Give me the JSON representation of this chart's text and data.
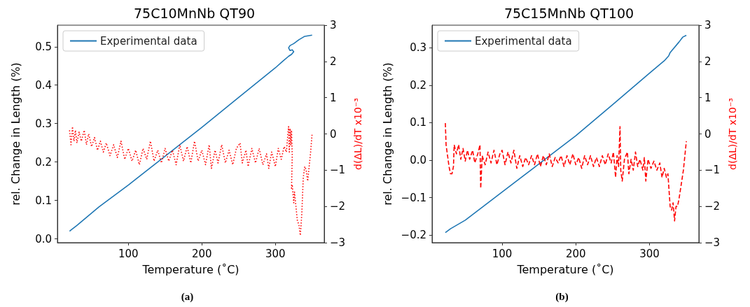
{
  "chart_data": [
    {
      "type": "line",
      "title": "75C10MnNb QT90",
      "xlabel": "Temperature (˚C)",
      "ylabel": "rel. Change in Length (%)",
      "y2label": "d(ΔL)/dT x10⁻³",
      "annotations": [
        "(a)"
      ],
      "xlim": [
        3.5,
        366.5
      ],
      "xticks": [
        100,
        200,
        300
      ],
      "ylim": [
        -0.01,
        0.556
      ],
      "yticks": [
        {
          "value": 0,
          "label": "0.0"
        },
        0.1,
        0.2,
        0.3,
        0.4,
        0.5
      ],
      "y2lim": [
        -3,
        3
      ],
      "y2ticks": [
        -3,
        -2,
        -1,
        0,
        1,
        2,
        3
      ],
      "grid": false,
      "legend": "top left",
      "marker": "none",
      "series": [
        {
          "name": "Experimental data",
          "color": "#1f77b4",
          "line_style": "solid",
          "x": [
            20,
            22,
            30,
            60,
            100,
            150,
            200,
            250,
            300,
            310,
            318,
            322,
            325,
            323,
            320,
            318,
            320,
            325,
            332,
            340,
            350
          ],
          "values": [
            0.02,
            0.023,
            0.035,
            0.083,
            0.14,
            0.215,
            0.29,
            0.368,
            0.445,
            0.462,
            0.475,
            0.48,
            0.487,
            0.492,
            0.49,
            0.497,
            0.503,
            0.508,
            0.518,
            0.527,
            0.53
          ]
        },
        {
          "color": "#ff0000",
          "axis": "y2",
          "line_style": "dotted",
          "x": [
            20,
            22,
            24,
            26,
            28,
            30,
            33,
            36,
            40,
            43,
            46,
            50,
            54,
            58,
            62,
            66,
            70,
            75,
            80,
            85,
            90,
            95,
            100,
            105,
            110,
            115,
            120,
            125,
            130,
            135,
            140,
            145,
            150,
            155,
            160,
            165,
            170,
            175,
            180,
            185,
            190,
            195,
            200,
            205,
            210,
            213,
            218,
            222,
            227,
            232,
            237,
            242,
            247,
            252,
            255,
            260,
            263,
            268,
            273,
            278,
            283,
            288,
            291,
            295,
            300,
            304,
            308,
            312,
            315,
            318,
            319,
            320,
            321,
            322,
            323,
            322,
            323,
            325,
            326,
            328,
            330,
            332,
            334,
            336,
            338,
            340,
            342,
            344,
            346,
            348,
            350
          ],
          "values": [
            0.1,
            -0.3,
            0.2,
            -0.2,
            0.1,
            -0.25,
            0.05,
            -0.2,
            0.1,
            -0.3,
            0,
            -0.35,
            -0.1,
            -0.45,
            -0.2,
            -0.5,
            -0.25,
            -0.6,
            -0.3,
            -0.65,
            -0.2,
            -0.7,
            -0.4,
            -0.75,
            -0.45,
            -0.85,
            -0.4,
            -0.7,
            -0.2,
            -0.75,
            -0.45,
            -0.8,
            -0.4,
            -0.75,
            -0.45,
            -0.85,
            -0.3,
            -0.75,
            -0.35,
            -0.8,
            -0.2,
            -0.75,
            -0.45,
            -0.85,
            -0.3,
            -0.95,
            -0.45,
            -0.8,
            -0.3,
            -0.8,
            -0.45,
            -0.85,
            -0.4,
            -0.25,
            -0.8,
            -0.45,
            -0.9,
            -0.4,
            -0.8,
            -0.4,
            -0.85,
            -0.55,
            -0.95,
            -0.5,
            -0.9,
            -0.4,
            -0.7,
            -0.35,
            -0.5,
            0.2,
            -0.5,
            0.15,
            -0.3,
            0.1,
            -0.6,
            -1.5,
            -1.4,
            -1.9,
            -1.6,
            -2.0,
            -2.4,
            -2.5,
            -2.8,
            -2.2,
            -1.2,
            -0.9,
            -1.0,
            -1.3,
            -0.9,
            -0.5,
            0.0
          ]
        }
      ]
    },
    {
      "type": "line",
      "title": "75C15MnNb QT100",
      "xlabel": "Temperature (˚C)",
      "ylabel": "rel. Change in Length (%)",
      "y2label": "d(ΔL)/dT x10⁻³",
      "annotations": [
        "(b)"
      ],
      "xlim": [
        5,
        367
      ],
      "xticks": [
        100,
        200,
        300
      ],
      "ylim": [
        -0.22,
        0.36
      ],
      "yticks": [
        -0.2,
        -0.1,
        {
          "value": 0,
          "label": "0.0"
        },
        0.1,
        0.2,
        0.3
      ],
      "y2lim": [
        -3,
        3
      ],
      "y2ticks": [
        -3,
        -2,
        -1,
        0,
        1,
        2,
        3
      ],
      "grid": false,
      "legend": "top left",
      "marker": "none",
      "series": [
        {
          "name": "Experimental data",
          "color": "#1f77b4",
          "line_style": "solid",
          "x": [
            23,
            30,
            50,
            100,
            150,
            200,
            250,
            300,
            320,
            326,
            328,
            340,
            345,
            350
          ],
          "values": [
            -0.193,
            -0.183,
            -0.16,
            -0.085,
            -0.01,
            0.065,
            0.148,
            0.232,
            0.265,
            0.278,
            0.287,
            0.315,
            0.328,
            0.333
          ]
        },
        {
          "color": "#ff0000",
          "axis": "y2",
          "line_style": "dashed",
          "x": [
            23,
            24,
            26,
            28,
            30,
            32,
            34,
            35,
            38,
            41,
            44,
            47,
            50,
            53,
            56,
            60,
            63,
            67,
            70,
            71,
            73,
            77,
            81,
            85,
            89,
            93,
            97,
            100,
            104,
            108,
            112,
            116,
            120,
            124,
            128,
            132,
            136,
            140,
            144,
            148,
            152,
            156,
            160,
            164,
            168,
            172,
            176,
            180,
            184,
            188,
            192,
            196,
            200,
            204,
            208,
            212,
            216,
            220,
            224,
            228,
            232,
            236,
            240,
            244,
            248,
            251,
            254,
            256,
            258,
            260,
            261,
            263,
            266,
            270,
            272,
            275,
            278,
            281,
            284,
            287,
            291,
            293,
            295,
            298,
            302,
            306,
            310,
            314,
            317,
            320,
            323,
            325,
            326,
            328,
            330,
            332,
            334,
            336,
            338,
            340,
            343,
            346,
            348,
            350
          ],
          "values": [
            0.3,
            -0.3,
            -0.6,
            -0.9,
            -1.1,
            -1.1,
            -0.9,
            -0.3,
            -0.55,
            -0.3,
            -0.7,
            -0.4,
            -0.75,
            -0.45,
            -0.7,
            -0.45,
            -0.8,
            -0.55,
            -0.3,
            -1.5,
            -0.6,
            -0.85,
            -0.5,
            -0.8,
            -0.45,
            -0.85,
            -0.55,
            -0.45,
            -0.85,
            -0.5,
            -0.8,
            -0.45,
            -0.95,
            -0.6,
            -0.9,
            -0.65,
            -0.85,
            -0.6,
            -0.85,
            -0.55,
            -0.9,
            -0.6,
            -0.85,
            -0.55,
            -0.9,
            -0.65,
            -0.8,
            -0.6,
            -0.9,
            -0.6,
            -0.85,
            -0.55,
            -0.85,
            -0.65,
            -0.95,
            -0.6,
            -0.85,
            -0.6,
            -0.9,
            -0.65,
            -0.9,
            -0.6,
            -0.85,
            -0.55,
            -0.8,
            -0.5,
            -1.2,
            -0.6,
            -0.9,
            0.2,
            -1.0,
            -1.3,
            -0.7,
            -0.5,
            -1.1,
            -0.7,
            -1.0,
            -0.5,
            -0.9,
            -0.7,
            -1.0,
            -0.65,
            -1.3,
            -0.7,
            -0.95,
            -0.75,
            -1.0,
            -0.8,
            -1.2,
            -0.95,
            -1.2,
            -1.1,
            -1.4,
            -2.0,
            -2.1,
            -1.9,
            -2.4,
            -2.0,
            -2.0,
            -1.8,
            -1.4,
            -1.0,
            -0.6,
            -0.2
          ]
        }
      ]
    }
  ]
}
